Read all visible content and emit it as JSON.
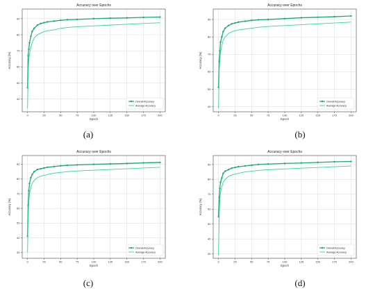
{
  "colors": {
    "overall": "#1aa876",
    "average": "#2fd6a0",
    "grid": "#d9d9d9",
    "axis": "#444444"
  },
  "chart_data": [
    {
      "type": "line",
      "panel_label": "(a)",
      "title": "Accuracy over Epochs",
      "xlabel": "Epoch",
      "ylabel": "Accuracy (%)",
      "xlim": [
        -8,
        208
      ],
      "ylim": [
        32,
        96
      ],
      "xticks": [
        0,
        25,
        50,
        75,
        100,
        125,
        150,
        175,
        200
      ],
      "yticks": [
        40,
        50,
        60,
        70,
        80,
        90
      ],
      "grid": true,
      "legend": "bottom-right",
      "series": [
        {
          "name": "Overall Accuracy",
          "marker": "circle",
          "x": [
            0,
            1,
            2,
            3,
            5,
            7,
            10,
            15,
            20,
            25,
            30,
            40,
            50,
            60,
            75,
            100,
            125,
            150,
            175,
            200
          ],
          "values": [
            47,
            67,
            71,
            75,
            79,
            82,
            84,
            86,
            87,
            87.5,
            88,
            88.5,
            89,
            89.3,
            89.5,
            90,
            90.3,
            90.5,
            90.8,
            91
          ]
        },
        {
          "name": "Average Accuracy",
          "marker": "none",
          "x": [
            0,
            1,
            2,
            3,
            5,
            7,
            10,
            15,
            20,
            25,
            30,
            40,
            50,
            60,
            75,
            100,
            125,
            150,
            175,
            200
          ],
          "values": [
            34,
            58,
            64,
            68,
            72,
            75,
            78,
            80,
            81,
            82,
            82.5,
            83,
            84,
            84.5,
            85,
            85.5,
            86,
            86.5,
            87,
            87.5
          ]
        }
      ]
    },
    {
      "type": "line",
      "panel_label": "(b)",
      "title": "Accuracy over Epochs",
      "xlabel": "Epoch",
      "ylabel": "Accuracy (%)",
      "xlim": [
        -8,
        208
      ],
      "ylim": [
        37,
        96
      ],
      "xticks": [
        0,
        25,
        50,
        75,
        100,
        125,
        150,
        175,
        200
      ],
      "yticks": [
        40,
        50,
        60,
        70,
        80,
        90
      ],
      "grid": true,
      "legend": "bottom-right",
      "series": [
        {
          "name": "Overall Accuracy",
          "marker": "circle",
          "x": [
            0,
            1,
            2,
            3,
            5,
            7,
            10,
            15,
            20,
            25,
            30,
            40,
            50,
            60,
            75,
            100,
            125,
            150,
            175,
            200
          ],
          "values": [
            51,
            66,
            72,
            77,
            80,
            83,
            85,
            86.5,
            87.5,
            88,
            88.5,
            89,
            89.5,
            89.8,
            90,
            90.5,
            91,
            91.3,
            91.6,
            92
          ]
        },
        {
          "name": "Average Accuracy",
          "marker": "none",
          "x": [
            0,
            1,
            2,
            3,
            5,
            7,
            10,
            15,
            20,
            25,
            30,
            40,
            50,
            60,
            75,
            100,
            125,
            150,
            175,
            200
          ],
          "values": [
            39,
            60,
            67,
            71,
            75,
            78,
            80,
            82,
            83,
            83.5,
            84,
            84.5,
            85,
            85.5,
            86,
            86.5,
            87,
            87.5,
            88,
            88.5
          ]
        }
      ]
    },
    {
      "type": "line",
      "panel_label": "(c)",
      "title": "Accuracy over Epochs",
      "xlabel": "Epoch",
      "ylabel": "Accuracy (%)",
      "xlim": [
        -8,
        208
      ],
      "ylim": [
        26,
        96
      ],
      "xticks": [
        0,
        25,
        50,
        75,
        100,
        125,
        150,
        175,
        200
      ],
      "yticks": [
        30,
        40,
        50,
        60,
        70,
        80,
        90
      ],
      "grid": true,
      "legend": "bottom-right",
      "series": [
        {
          "name": "Overall Accuracy",
          "marker": "circle",
          "x": [
            0,
            1,
            2,
            3,
            5,
            7,
            10,
            15,
            20,
            25,
            30,
            40,
            50,
            60,
            75,
            100,
            125,
            150,
            175,
            200
          ],
          "values": [
            41,
            62,
            72,
            77,
            81,
            83,
            85,
            86.5,
            87,
            87.5,
            88,
            88.5,
            89,
            89.3,
            89.6,
            90,
            90.3,
            90.6,
            91,
            91.3
          ]
        },
        {
          "name": "Average Accuracy",
          "marker": "none",
          "x": [
            0,
            1,
            2,
            3,
            5,
            7,
            10,
            15,
            20,
            25,
            30,
            40,
            50,
            60,
            75,
            100,
            125,
            150,
            175,
            200
          ],
          "values": [
            30,
            55,
            65,
            70,
            74,
            77,
            79,
            81,
            82,
            82.5,
            83,
            84,
            84.5,
            85,
            85.5,
            86,
            86.5,
            87,
            87.5,
            88
          ]
        }
      ]
    },
    {
      "type": "line",
      "panel_label": "(d)",
      "title": "Accuracy over Epochs",
      "xlabel": "Epoch",
      "ylabel": "Accuracy (%)",
      "xlim": [
        -8,
        208
      ],
      "ylim": [
        27,
        96
      ],
      "xticks": [
        0,
        25,
        50,
        75,
        100,
        125,
        150,
        175,
        200
      ],
      "yticks": [
        30,
        40,
        50,
        60,
        70,
        80,
        90
      ],
      "grid": true,
      "legend": "bottom-right",
      "series": [
        {
          "name": "Overall Accuracy",
          "marker": "circle",
          "x": [
            0,
            1,
            2,
            3,
            5,
            7,
            10,
            15,
            20,
            25,
            30,
            40,
            50,
            60,
            75,
            100,
            125,
            150,
            175,
            200
          ],
          "values": [
            55,
            68,
            74,
            78,
            81,
            84,
            85.5,
            86.5,
            87.5,
            88,
            88.5,
            89,
            89.5,
            90,
            90.3,
            90.7,
            91,
            91.4,
            91.8,
            92
          ]
        },
        {
          "name": "Average Accuracy",
          "marker": "none",
          "x": [
            0,
            1,
            2,
            3,
            5,
            7,
            10,
            15,
            20,
            25,
            30,
            40,
            50,
            60,
            75,
            100,
            125,
            150,
            175,
            200
          ],
          "values": [
            29,
            56,
            66,
            71,
            75,
            78,
            80,
            82,
            83,
            83.5,
            84,
            85,
            85.5,
            86,
            86.5,
            87,
            87.5,
            88,
            88.5,
            89
          ]
        }
      ]
    }
  ]
}
